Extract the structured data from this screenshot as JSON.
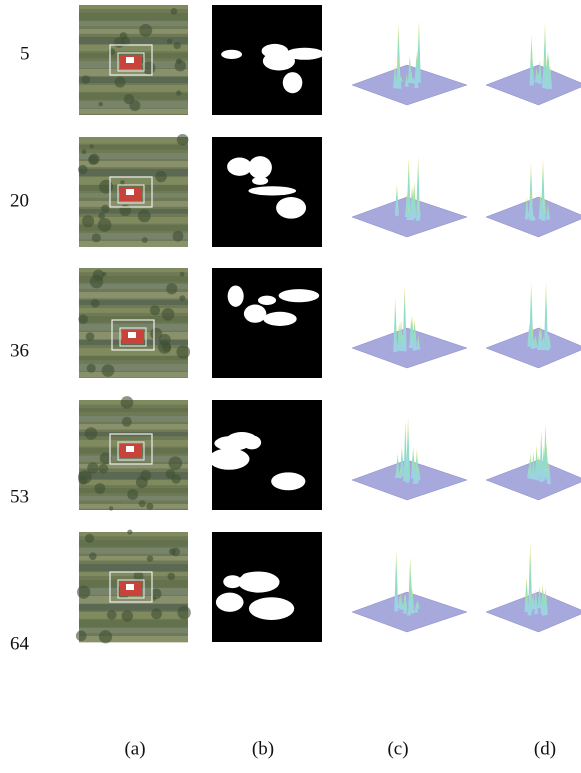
{
  "rows": [
    {
      "label": "5"
    },
    {
      "label": "20"
    },
    {
      "label": "36"
    },
    {
      "label": "53"
    },
    {
      "label": "64"
    }
  ],
  "columns": [
    "(a)",
    "(b)",
    "(c)",
    "(d)"
  ]
}
